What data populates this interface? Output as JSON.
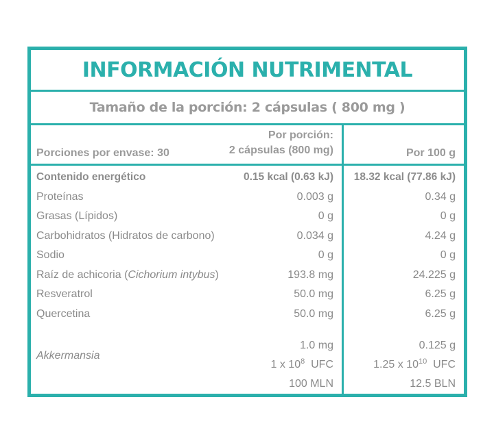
{
  "title": "INFORMACIÓN NUTRIMENTAL",
  "serving_size": "Tamaño de la porción: 2 cápsulas ( 800 mg )",
  "header": {
    "servings_per_container": "Porciones por envase: 30",
    "per_serving_line1": "Por porción:",
    "per_serving_line2": "2 cápsulas (800 mg)",
    "per_100g": "Por 100 g"
  },
  "rows": [
    {
      "name": "Contenido energético",
      "per_serving": "0.15 kcal (0.63 kJ)",
      "per_100g": "18.32 kcal (77.86 kJ)"
    },
    {
      "name": "Proteínas",
      "per_serving": "0.003 g",
      "per_100g": "0.34 g"
    },
    {
      "name": "Grasas (Lípidos)",
      "per_serving": "0 g",
      "per_100g": "0 g"
    },
    {
      "name": "Carbohidratos (Hidratos de carbono)",
      "per_serving": "0.034 g",
      "per_100g": "4.24 g"
    },
    {
      "name": "Sodio",
      "per_serving": "0 g",
      "per_100g": "0 g"
    },
    {
      "name_prefix": "Raíz de achicoria (",
      "name_italic": "Cichorium intybus",
      "name_suffix": ")",
      "per_serving": "193.8 mg",
      "per_100g": "24.225 g"
    },
    {
      "name": "Resveratrol",
      "per_serving": "50.0 mg",
      "per_100g": "6.25 g"
    },
    {
      "name": "Quercetina",
      "per_serving": "50.0 mg",
      "per_100g": "6.25 g"
    }
  ],
  "akkermansia": {
    "name": "Akkermansia",
    "per_serving": {
      "mass": "1.0 mg",
      "cfu_base": "1 x 10",
      "cfu_exp": "8",
      "cfu_unit": "UFC",
      "count": "100 MLN"
    },
    "per_100g": {
      "mass": "0.125 g",
      "cfu_base": "1.25 x 10",
      "cfu_exp": "10",
      "cfu_unit": "UFC",
      "count": "12.5 BLN"
    }
  },
  "colors": {
    "accent": "#2bb0ac",
    "text": "#8a8a8a"
  }
}
